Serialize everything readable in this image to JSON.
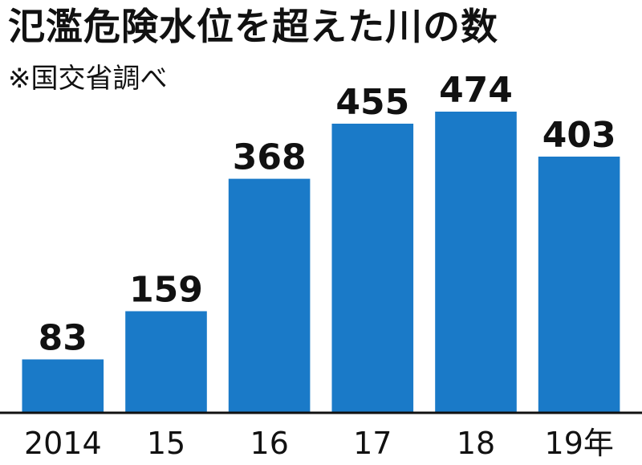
{
  "chart_data": {
    "type": "bar",
    "title": "氾濫危険水位を超えた川の数",
    "subtitle": "※国交省調べ",
    "categories": [
      "2014",
      "15",
      "16",
      "17",
      "18",
      "19年"
    ],
    "values": [
      83,
      159,
      368,
      455,
      474,
      403
    ],
    "xlabel": "",
    "ylabel": "",
    "ylim": [
      0,
      474
    ],
    "grid": false,
    "legend": "none",
    "bar_color": "#1a7ac8",
    "axis_color": "#111111"
  }
}
